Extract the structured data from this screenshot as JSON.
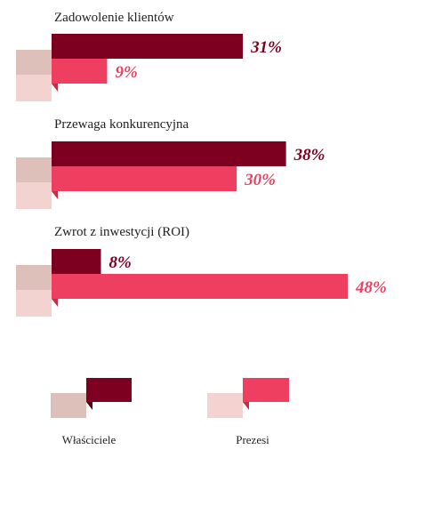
{
  "chart_data": {
    "type": "bar",
    "orientation": "horizontal",
    "title": "",
    "xlabel": "",
    "ylabel": "",
    "xlim": [
      0,
      48
    ],
    "categories": [
      "Zadowolenie klientów",
      "Przewaga konkurencyjna",
      "Zwrot z inwestycji (ROI)"
    ],
    "series": [
      {
        "name": "Właściciele",
        "values": [
          31,
          38,
          8
        ],
        "labels": [
          "31%",
          "38%",
          "8%"
        ]
      },
      {
        "name": "Prezesi",
        "values": [
          9,
          30,
          48
        ],
        "labels": [
          "9%",
          "30%",
          "48%"
        ]
      }
    ],
    "legend_position": "bottom",
    "grid": false
  },
  "colors": {
    "series1_bar": "#7d0020",
    "series1_tab": "#dcc0b9",
    "series1_fold": "#5a0015",
    "series2_bar": "#ef3f60",
    "series2_tab": "#f2d3cf",
    "series2_fold": "#c42d48",
    "label_text": "#222222"
  }
}
